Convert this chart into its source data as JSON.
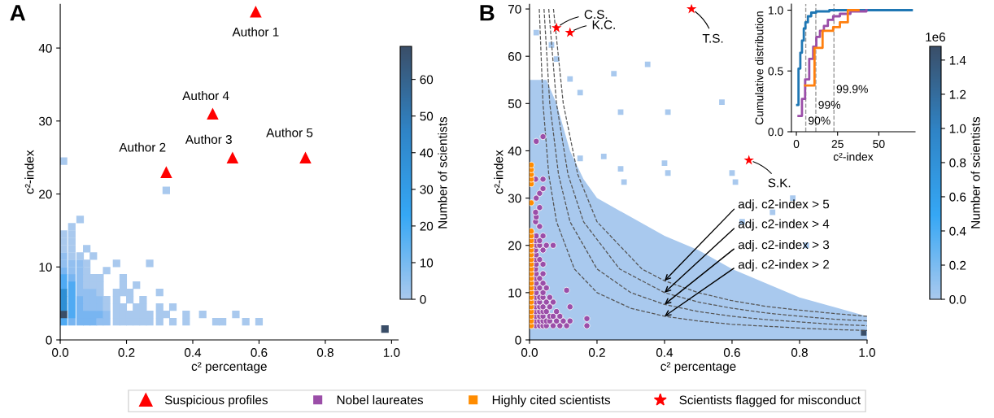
{
  "chart_data": [
    {
      "type": "scatter",
      "title": "A",
      "xlabel": "c² percentage",
      "ylabel": "c²-index",
      "clabel": "Number of scientists",
      "legend": "bottom",
      "xlim": [
        0,
        1.02
      ],
      "ylim": [
        0,
        46
      ],
      "xticks": [
        {
          "value": 0,
          "label": "0.0"
        },
        {
          "value": 0.2,
          "label": "0.2"
        },
        {
          "value": 0.4,
          "label": "0.4"
        },
        {
          "value": 0.6,
          "label": "0.6"
        },
        {
          "value": 0.8,
          "label": "0.8"
        },
        {
          "value": 1.0,
          "label": "1.0"
        }
      ],
      "yticks": [
        0,
        10,
        20,
        30,
        40
      ],
      "clim": [
        0,
        69
      ],
      "cticks": [
        0,
        10,
        20,
        30,
        40,
        50,
        60
      ],
      "series": [
        {
          "type": "scatter",
          "marker": "square",
          "x": [
            0.01,
            0.035,
            0.06,
            0.08,
            0.1,
            0.12,
            0.14,
            0.17,
            0.19,
            0.21,
            0.23,
            0.25,
            0.27,
            0.3,
            0.34,
            0.38,
            0.47,
            0.49,
            0.56,
            0.6,
            0.01,
            0.035,
            0.06,
            0.08,
            0.1,
            0.12,
            0.14,
            0.17,
            0.19,
            0.21,
            0.23,
            0.25,
            0.27,
            0.3,
            0.32,
            0.38,
            0.43,
            0.53,
            0.01,
            0.035,
            0.06,
            0.08,
            0.1,
            0.12,
            0.14,
            0.17,
            0.19,
            0.23,
            0.25,
            0.3,
            0.34,
            0.01,
            0.035,
            0.06,
            0.08,
            0.1,
            0.12,
            0.14,
            0.17,
            0.21,
            0.25,
            0.01,
            0.035,
            0.06,
            0.08,
            0.1,
            0.12,
            0.17,
            0.19,
            0.21,
            0.3,
            0.01,
            0.035,
            0.06,
            0.08,
            0.1,
            0.12,
            0.19,
            0.23,
            0.01,
            0.035,
            0.06,
            0.08,
            0.1,
            0.12,
            0.19,
            0.01,
            0.035,
            0.06,
            0.08,
            0.14,
            0.01,
            0.035,
            0.06,
            0.08,
            0.17,
            0.27,
            0.01,
            0.035,
            0.06,
            0.1,
            0.01,
            0.035,
            0.08,
            0.01,
            0.035,
            0.01,
            0.035,
            0.035,
            0.06,
            0.32,
            0.01,
            0.98
          ],
          "values": [
            2.5,
            2.5,
            2.5,
            2.5,
            2.5,
            2.5,
            2.5,
            2.5,
            2.5,
            2.5,
            2.5,
            2.5,
            2.5,
            2.5,
            2.5,
            2.5,
            2.5,
            2.5,
            2.5,
            2.5,
            3.5,
            3.5,
            3.5,
            3.5,
            3.5,
            3.5,
            3.5,
            3.5,
            3.5,
            3.5,
            3.5,
            3.5,
            3.5,
            3.5,
            3.5,
            3.5,
            3.5,
            3.5,
            4.5,
            4.5,
            4.5,
            4.5,
            4.5,
            4.5,
            4.5,
            4.5,
            4.5,
            4.5,
            4.5,
            4.5,
            4.5,
            5.5,
            5.5,
            5.5,
            5.5,
            5.5,
            5.5,
            5.5,
            5.5,
            5.5,
            5.5,
            6.5,
            6.5,
            6.5,
            6.5,
            6.5,
            6.5,
            6.5,
            6.5,
            6.5,
            6.5,
            7.5,
            7.5,
            7.5,
            7.5,
            7.5,
            7.5,
            7.5,
            7.5,
            8.5,
            8.5,
            8.5,
            8.5,
            8.5,
            8.5,
            8.5,
            9.5,
            9.5,
            9.5,
            9.5,
            9.5,
            10.5,
            10.5,
            10.5,
            10.5,
            10.5,
            10.5,
            11.5,
            11.5,
            11.5,
            11.5,
            12.5,
            12.5,
            12.5,
            13.5,
            13.5,
            14.5,
            14.5,
            15.5,
            16.5,
            20.5,
            24.5,
            1.5
          ],
          "colors": [
            "#4faaf3",
            "#78b5f1",
            "#78b5f1",
            "#78b5f1",
            "#78b5f1",
            "#92bff0",
            "#92bff0",
            "#a9c9ee",
            "#a9c9ee",
            "#a9c9ee",
            "#a9c9ee",
            "#a9c9ee",
            "#a9c9ee",
            "#a9c9ee",
            "#a9c9ee",
            "#a9c9ee",
            "#a9c9ee",
            "#a9c9ee",
            "#a9c9ee",
            "#a9c9ee",
            "#3a4e68",
            "#4faaf3",
            "#78b5f1",
            "#78b5f1",
            "#78b5f1",
            "#78b5f1",
            "#92bff0",
            "#a9c9ee",
            "#a9c9ee",
            "#a9c9ee",
            "#a9c9ee",
            "#a9c9ee",
            "#a9c9ee",
            "#a9c9ee",
            "#a9c9ee",
            "#a9c9ee",
            "#a9c9ee",
            "#a9c9ee",
            "#2f8fd4",
            "#4faaf3",
            "#78b5f1",
            "#92bff0",
            "#92bff0",
            "#92bff0",
            "#a9c9ee",
            "#a9c9ee",
            "#a9c9ee",
            "#a9c9ee",
            "#a9c9ee",
            "#a9c9ee",
            "#a9c9ee",
            "#2f8fd4",
            "#4faaf3",
            "#78b5f1",
            "#92bff0",
            "#92bff0",
            "#92bff0",
            "#a9c9ee",
            "#a9c9ee",
            "#a9c9ee",
            "#a9c9ee",
            "#2f8fd4",
            "#4faaf3",
            "#92bff0",
            "#92bff0",
            "#92bff0",
            "#a9c9ee",
            "#a9c9ee",
            "#a9c9ee",
            "#a9c9ee",
            "#a9c9ee",
            "#4faaf3",
            "#4faaf3",
            "#92bff0",
            "#a9c9ee",
            "#a9c9ee",
            "#a9c9ee",
            "#a9c9ee",
            "#a9c9ee",
            "#4faaf3",
            "#78b5f1",
            "#92bff0",
            "#a9c9ee",
            "#a9c9ee",
            "#a9c9ee",
            "#a9c9ee",
            "#78b5f1",
            "#92bff0",
            "#92bff0",
            "#a9c9ee",
            "#a9c9ee",
            "#92bff0",
            "#92bff0",
            "#92bff0",
            "#a9c9ee",
            "#a9c9ee",
            "#a9c9ee",
            "#92bff0",
            "#a9c9ee",
            "#a9c9ee",
            "#a9c9ee",
            "#a9c9ee",
            "#a9c9ee",
            "#a9c9ee",
            "#a9c9ee",
            "#a9c9ee",
            "#a9c9ee",
            "#a9c9ee",
            "#a9c9ee",
            "#a9c9ee",
            "#a9c9ee",
            "#a9c9ee",
            "#3a4e68"
          ]
        },
        {
          "type": "scatter",
          "name": "Suspicious profiles",
          "color": "#ff0000",
          "marker": "triangle",
          "x": [
            0.59,
            0.46,
            0.52,
            0.74,
            0.32
          ],
          "values": [
            45,
            31,
            25,
            25,
            23
          ]
        }
      ],
      "annotations": [
        {
          "text": "Author 1",
          "x": 0.59,
          "y": 45
        },
        {
          "text": "Author 4",
          "x": 0.46,
          "y": 31
        },
        {
          "text": "Author 3",
          "x": 0.52,
          "y": 25
        },
        {
          "text": "Author 5",
          "x": 0.74,
          "y": 25
        },
        {
          "text": "Author 2",
          "x": 0.32,
          "y": 23
        }
      ]
    },
    {
      "type": "scatter",
      "title": "B",
      "xlabel": "c² percentage",
      "ylabel": "c²-index",
      "clabel": "Number of scientists",
      "legend": "bottom",
      "xlim": [
        0,
        1.0
      ],
      "ylim": [
        0,
        71
      ],
      "xticks": [
        {
          "value": 0,
          "label": "0.0"
        },
        {
          "value": 0.2,
          "label": "0.2"
        },
        {
          "value": 0.4,
          "label": "0.4"
        },
        {
          "value": 0.6,
          "label": "0.6"
        },
        {
          "value": 0.8,
          "label": "0.8"
        },
        {
          "value": 1.0,
          "label": "1.0"
        }
      ],
      "yticks": [
        0,
        10,
        20,
        30,
        40,
        50,
        60,
        70
      ],
      "clim": [
        0,
        1.48
      ],
      "cticks": [
        {
          "value": 0,
          "label": "0.0"
        },
        {
          "value": 0.2,
          "label": "0.2"
        },
        {
          "value": 0.4,
          "label": "0.4"
        },
        {
          "value": 0.6,
          "label": "0.6"
        },
        {
          "value": 0.8,
          "label": "0.8"
        },
        {
          "value": 1.0,
          "label": "1.0"
        },
        {
          "value": 1.2,
          "label": "1.2"
        },
        {
          "value": 1.4,
          "label": "1.4"
        }
      ],
      "series": [
        {
          "type": "area",
          "color": "#a9c9ee",
          "x": [
            0.0,
            0.02,
            0.05,
            0.08,
            0.12,
            0.16,
            0.2,
            0.3,
            0.4,
            0.5,
            0.6,
            0.7,
            0.8,
            0.9,
            1.0
          ],
          "values": [
            55,
            55,
            55,
            50,
            40,
            34,
            30,
            26,
            22,
            19,
            15,
            12,
            9,
            7,
            5
          ]
        },
        {
          "type": "scatter",
          "marker": "square",
          "x": [
            0.02,
            0.065,
            0.08,
            0.35,
            0.25,
            0.12,
            0.15,
            0.57,
            0.27,
            0.41,
            0.4,
            0.22,
            0.15,
            0.27,
            0.41,
            0.6,
            0.61,
            0.28,
            0.72,
            0.63,
            0.82,
            0.78,
            0.99
          ],
          "values": [
            65,
            62.4,
            59.4,
            58.3,
            56.3,
            55.2,
            52.3,
            50.3,
            48.2,
            48.2,
            37.4,
            38.8,
            38.4,
            36.2,
            35.3,
            35.3,
            33.4,
            33.4,
            27,
            25,
            20,
            30,
            1.5
          ],
          "colors": [
            "#a9c9ee",
            "#a9c9ee",
            "#a9c9ee",
            "#a9c9ee",
            "#a9c9ee",
            "#a9c9ee",
            "#a9c9ee",
            "#a9c9ee",
            "#a9c9ee",
            "#a9c9ee",
            "#a9c9ee",
            "#a9c9ee",
            "#a9c9ee",
            "#a9c9ee",
            "#a9c9ee",
            "#a9c9ee",
            "#a9c9ee",
            "#a9c9ee",
            "#a9c9ee",
            "#a9c9ee",
            "#a9c9ee",
            "#a9c9ee",
            "#3a4e68"
          ]
        },
        {
          "type": "line",
          "color": "#555555",
          "line_style": "dashed",
          "x": [
            0.029,
            0.04,
            0.057,
            0.08,
            0.133,
            0.2,
            0.3,
            0.4,
            0.5,
            0.6,
            0.7,
            0.8,
            0.9,
            1.0
          ],
          "values": [
            70,
            50,
            35,
            25,
            15,
            10,
            6.7,
            5,
            4,
            3.3,
            2.9,
            2.5,
            2.2,
            2
          ]
        },
        {
          "type": "line",
          "color": "#555555",
          "line_style": "dashed",
          "x": [
            0.043,
            0.06,
            0.086,
            0.12,
            0.2,
            0.3,
            0.4,
            0.5,
            0.6,
            0.7,
            0.8,
            0.9,
            1.0
          ],
          "values": [
            70,
            50,
            35,
            25,
            15,
            10,
            7.5,
            6,
            5,
            4.3,
            3.8,
            3.3,
            3
          ]
        },
        {
          "type": "line",
          "color": "#555555",
          "line_style": "dashed",
          "x": [
            0.057,
            0.08,
            0.114,
            0.16,
            0.267,
            0.4,
            0.5,
            0.6,
            0.7,
            0.8,
            0.9,
            1.0
          ],
          "values": [
            70,
            50,
            35,
            25,
            15,
            10,
            8,
            6.7,
            5.7,
            5,
            4.4,
            4
          ]
        },
        {
          "type": "line",
          "color": "#555555",
          "line_style": "dashed",
          "x": [
            0.071,
            0.1,
            0.143,
            0.2,
            0.333,
            0.4,
            0.5,
            0.6,
            0.7,
            0.8,
            0.9,
            1.0
          ],
          "values": [
            70,
            50,
            35,
            25,
            15,
            12.5,
            10,
            8.3,
            7.1,
            6.3,
            5.6,
            5
          ]
        },
        {
          "type": "scatter",
          "name": "Nobel laureates",
          "color": "#9b4ea8",
          "marker": "circle",
          "x": [
            0.018,
            0.03,
            0.04,
            0.05,
            0.07,
            0.09,
            0.11,
            0.17,
            0.018,
            0.03,
            0.04,
            0.05,
            0.06,
            0.08,
            0.1,
            0.12,
            0.17,
            0.018,
            0.03,
            0.04,
            0.06,
            0.07,
            0.09,
            0.018,
            0.03,
            0.04,
            0.05,
            0.08,
            0.018,
            0.03,
            0.04,
            0.06,
            0.12,
            0.018,
            0.03,
            0.05,
            0.07,
            0.018,
            0.03,
            0.04,
            0.06,
            0.02,
            0.04,
            0.11,
            0.018,
            0.03,
            0.05,
            0.02,
            0.04,
            0.018,
            0.03,
            0.02,
            0.04,
            0.018,
            0.02,
            0.04,
            0.018,
            0.03,
            0.02,
            0.018,
            0.04,
            0.02,
            0.03,
            0.05,
            0.07,
            0.018,
            0.03,
            0.02,
            0.04,
            0.03,
            0.018,
            0.02,
            0.018,
            0.03,
            0.02,
            0.03,
            0.04,
            0.018,
            0.04,
            0.02,
            0.04
          ],
          "values": [
            3,
            3,
            3,
            3,
            3,
            3,
            3,
            3,
            4,
            4,
            4,
            4,
            4,
            4,
            4,
            4,
            4.5,
            5,
            5,
            5,
            5,
            5,
            5,
            6,
            6,
            6,
            6,
            6,
            7,
            7,
            7,
            7,
            7,
            8,
            8,
            8,
            8,
            9,
            9,
            9,
            9,
            10,
            10,
            10.5,
            11,
            11,
            11,
            12,
            12,
            13,
            13,
            14,
            14,
            15,
            16,
            16,
            17,
            17,
            18,
            19,
            19,
            20,
            20,
            20,
            20,
            21,
            21,
            22,
            22,
            24,
            25,
            26,
            27,
            28,
            30,
            31,
            32,
            34,
            34,
            42,
            43
          ]
        },
        {
          "type": "scatter",
          "name": "Highly cited scientists",
          "color": "#ff8c00",
          "marker": "circle",
          "x": [
            0.005,
            0.005,
            0.005,
            0.005,
            0.005,
            0.005,
            0.005,
            0.005,
            0.005,
            0.005,
            0.005,
            0.005,
            0.005,
            0.005,
            0.005,
            0.005,
            0.005,
            0.005,
            0.005,
            0.005,
            0.005,
            0.005,
            0.005,
            0.005,
            0.005,
            0.005,
            0.005
          ],
          "values": [
            3,
            4,
            5,
            6,
            7,
            8,
            9,
            10,
            11,
            12,
            13,
            14,
            15,
            16,
            17,
            18,
            19,
            20,
            21,
            22,
            23,
            29,
            33,
            34,
            35,
            36,
            37
          ]
        },
        {
          "type": "scatter",
          "name": "Scientists flagged for misconduct",
          "color": "#ff0000",
          "marker": "star",
          "x": [
            0.08,
            0.12,
            0.48,
            0.65
          ],
          "values": [
            66,
            65,
            70,
            38
          ]
        }
      ],
      "annotations": [
        {
          "text": "C.S.",
          "x": 0.08,
          "y": 66
        },
        {
          "text": "K.C.",
          "x": 0.12,
          "y": 65
        },
        {
          "text": "T.S.",
          "x": 0.48,
          "y": 70
        },
        {
          "text": "S.K.",
          "x": 0.65,
          "y": 38
        },
        {
          "text": "adj. c2-index > 5",
          "x": 0.4,
          "y": 12.5
        },
        {
          "text": "adj. c2-index > 4",
          "x": 0.4,
          "y": 10
        },
        {
          "text": "adj. c2-index > 3",
          "x": 0.4,
          "y": 7.5
        },
        {
          "text": "adj. c2-index > 2",
          "x": 0.4,
          "y": 5
        },
        "1e6"
      ]
    },
    {
      "type": "step",
      "xlabel": "c²-index",
      "ylabel": "Cumulative distribution",
      "xlim": [
        -3,
        72
      ],
      "ylim": [
        0,
        1.05
      ],
      "xticks": [
        0,
        25,
        50
      ],
      "yticks": [
        {
          "value": 0,
          "label": "0.0"
        },
        {
          "value": 0.5,
          "label": "0.5"
        },
        {
          "value": 1.0,
          "label": "1.0"
        }
      ],
      "series": [
        {
          "color": "#1f77b4",
          "x": [
            0.5,
            1.3,
            2.4,
            3.4,
            4.5,
            5.5,
            7,
            9,
            12,
            20,
            70
          ],
          "values": [
            0.22,
            0.52,
            0.65,
            0.75,
            0.85,
            0.9,
            0.95,
            0.98,
            0.99,
            1.0,
            1.0
          ]
        },
        {
          "color": "#9b4ea8",
          "x": [
            1.3,
            3.4,
            5.3,
            7.8,
            10.2,
            12.1,
            14.3,
            16.7,
            19.1,
            22.3,
            26.4,
            32.8,
            42.5
          ],
          "values": [
            0.13,
            0.27,
            0.43,
            0.6,
            0.7,
            0.78,
            0.83,
            0.87,
            0.92,
            0.95,
            0.97,
            0.99,
            1.0
          ]
        },
        {
          "color": "#ff7f0e",
          "x": [
            5.3,
            11,
            15.9,
            22.3,
            26.4,
            31.2,
            37.7
          ],
          "values": [
            0.38,
            0.69,
            0.83,
            0.86,
            0.9,
            1.0,
            1.0
          ]
        }
      ],
      "ref_lines": [
        {
          "axis": "x",
          "value": 5.7,
          "color": "#999999",
          "line_style": "dashed"
        },
        {
          "axis": "x",
          "value": 11.8,
          "color": "#999999",
          "line_style": "dashed"
        },
        {
          "axis": "x",
          "value": 22.8,
          "color": "#999999",
          "line_style": "dashed"
        }
      ],
      "annotations": [
        {
          "text": "90%",
          "x": 5.7,
          "y": 0.04
        },
        {
          "text": "99%",
          "x": 11.8,
          "y": 0.17
        },
        {
          "text": "99.9%",
          "x": 22.8,
          "y": 0.3
        }
      ]
    }
  ]
}
